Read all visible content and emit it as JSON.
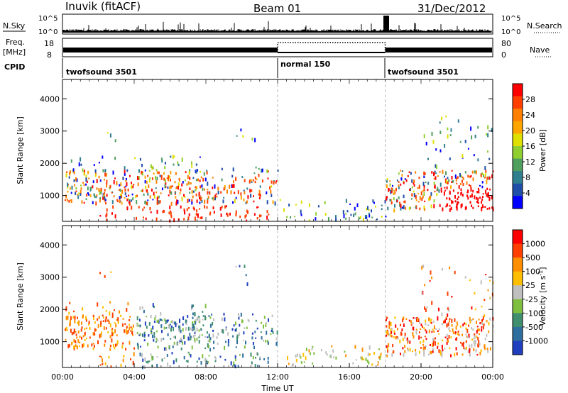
{
  "header": {
    "station": "Inuvik (fitACF)",
    "beam": "Beam 01",
    "date": "31/Dec/2012"
  },
  "panels": {
    "nsky_label": "N.Sky",
    "nsky_ticks": [
      "10^5",
      "10^0"
    ],
    "nsearch_label": "N.Search",
    "nsearch_ticks": [
      "10^5",
      "10^0"
    ],
    "freq_label_1": "Freq.",
    "freq_label_2": "[MHz]",
    "freq_ticks": [
      "18",
      "8"
    ],
    "nave_label": "Nave",
    "nave_ticks": [
      "80",
      "0"
    ],
    "cpid_label": "CPID",
    "cpid_segments": [
      {
        "name": "twofsound 3501"
      },
      {
        "name": "normal 150"
      },
      {
        "name": "twofsound 3501"
      }
    ]
  },
  "chart_data": {
    "type": "heatmap",
    "xlabel": "Time UT",
    "x_ticks": [
      "00:00",
      "04:00",
      "08:00",
      "12:00",
      "16:00",
      "20:00",
      "00:00"
    ],
    "ylabel": "Slant Range [km]",
    "y_ticks": [
      "1000",
      "2000",
      "3000",
      "4000"
    ],
    "ylim": [
      200,
      4600
    ],
    "xlim_hours": [
      0,
      24
    ],
    "cpid_boundaries_hours": [
      12,
      18
    ],
    "panels": [
      {
        "name": "power",
        "colorbar_label": "Power [dB]",
        "colorbar_ticks": [
          "28",
          "24",
          "20",
          "16",
          "12",
          "8",
          "4"
        ],
        "colors": [
          "#0000ff",
          "#1f4fa8",
          "#2f7f8f",
          "#4f9f5f",
          "#8fcf2f",
          "#dfdf00",
          "#ffa500",
          "#ff7f00",
          "#ff3f00",
          "#ff0000"
        ]
      },
      {
        "name": "velocity",
        "colorbar_label": "Velocity [m s-1]",
        "colorbar_ticks": [
          "1000",
          "500",
          "100",
          "25",
          "-25",
          "-100",
          "-500",
          "-1000"
        ],
        "colors": [
          "#1f3fbf",
          "#2f6f9f",
          "#3f8f6f",
          "#7fbf3f",
          "#bfbfbf",
          "#ffbf00",
          "#ff8f00",
          "#ff3f00",
          "#ff0000"
        ]
      }
    ]
  }
}
